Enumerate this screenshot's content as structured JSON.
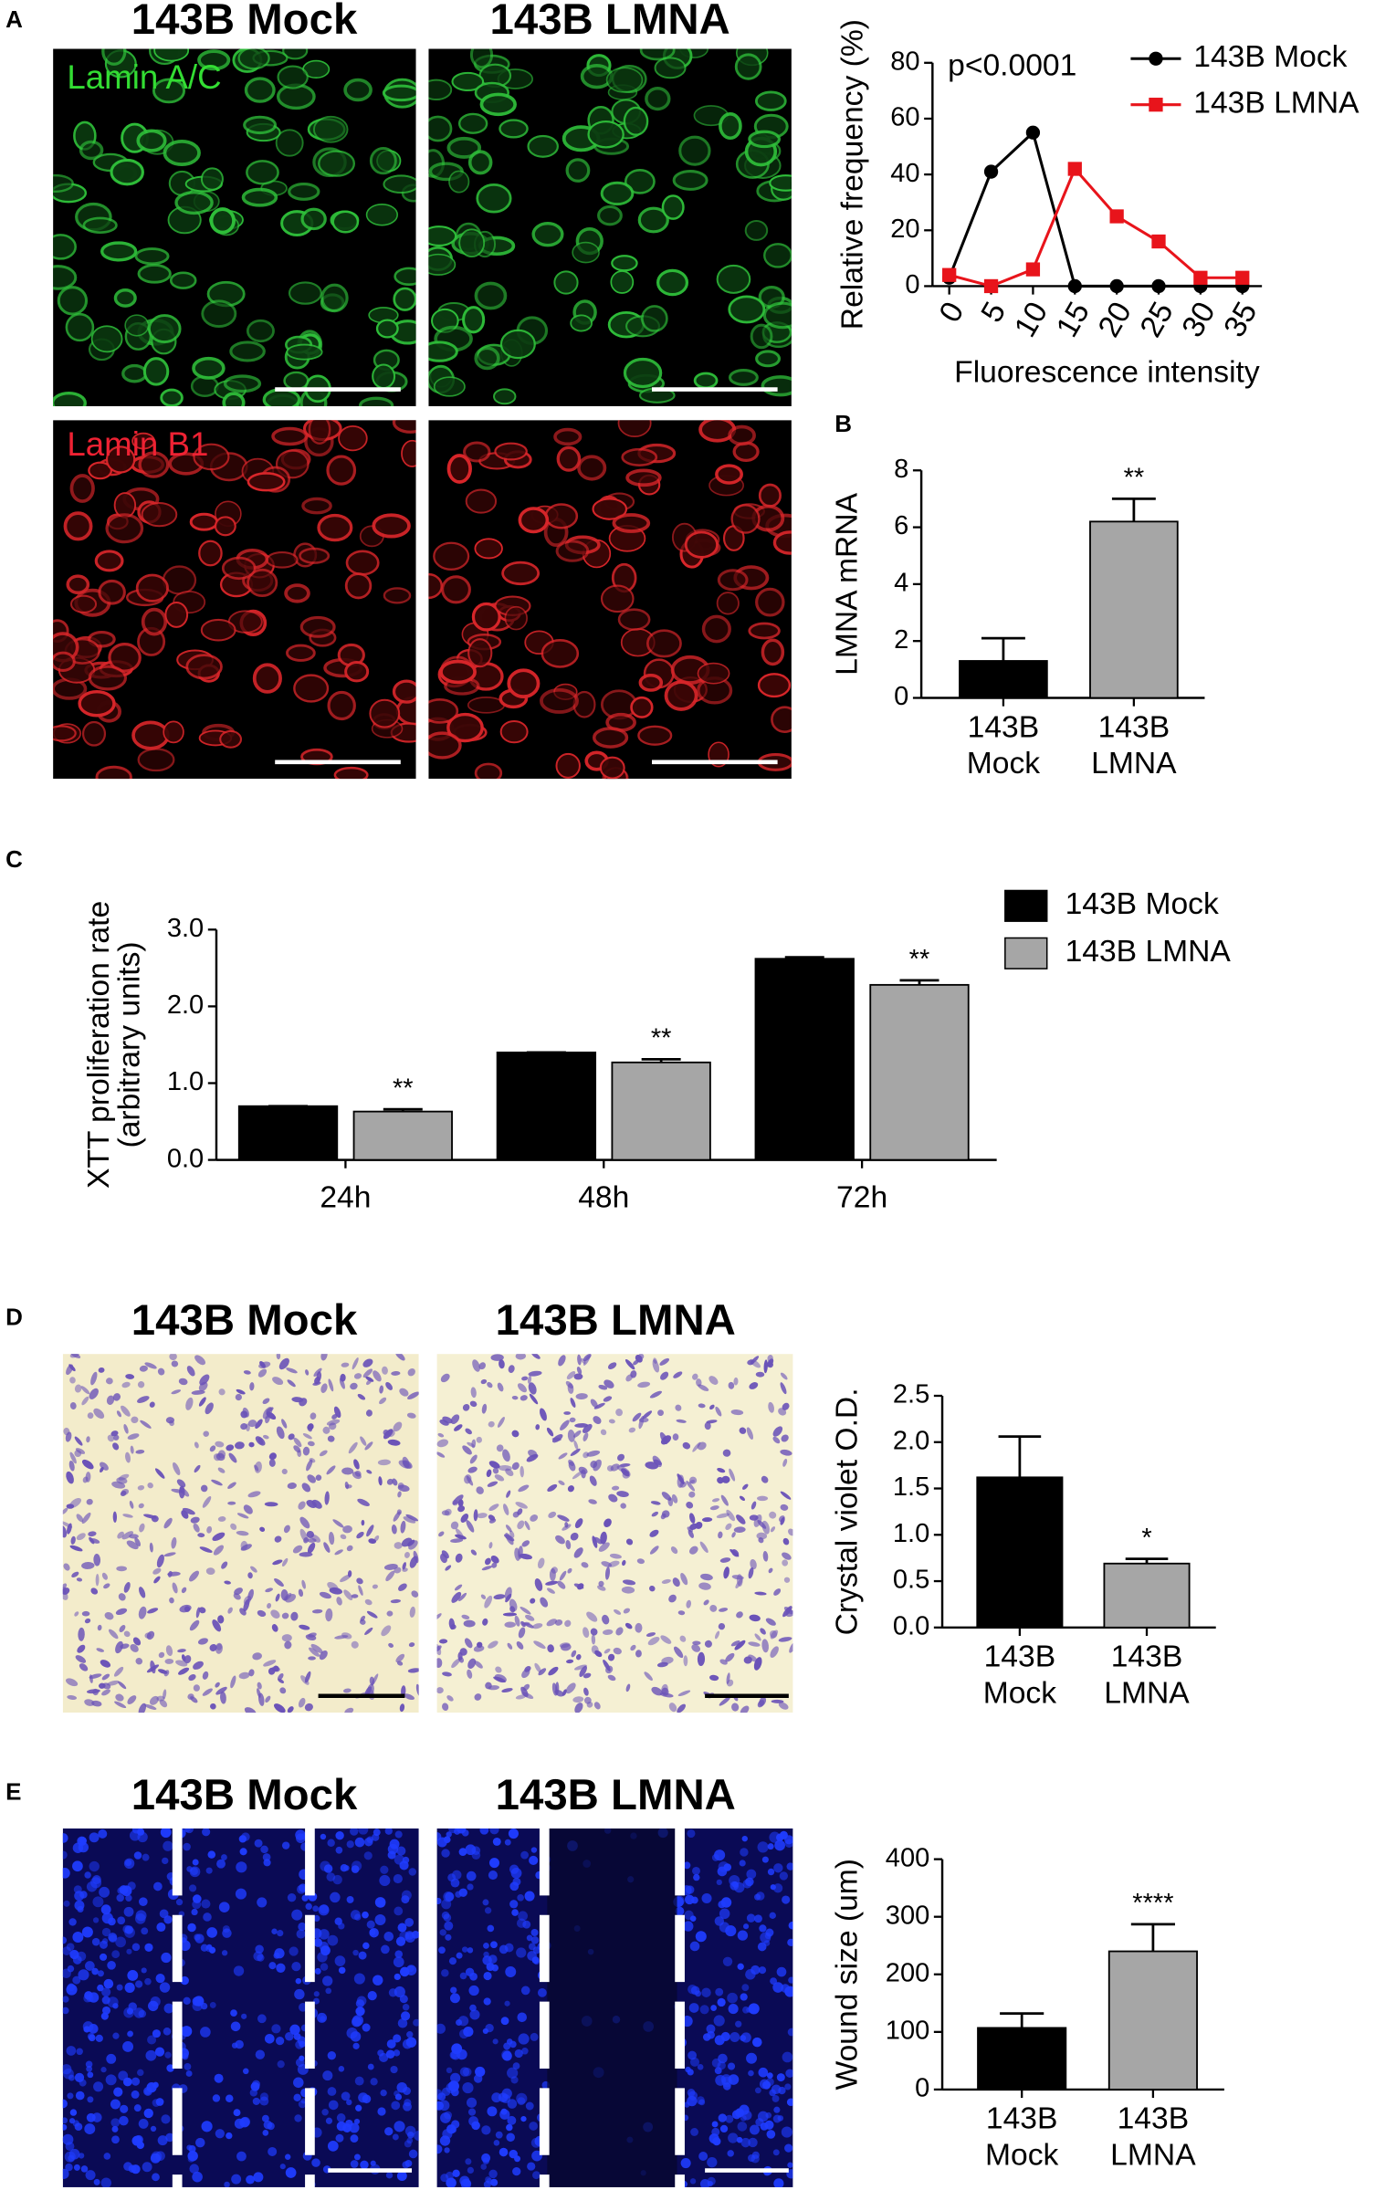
{
  "panels": {
    "A": {
      "label": "A",
      "columns": [
        "143B Mock",
        "143B LMNA"
      ],
      "stains": [
        "Lamin A/C",
        "Lamin B1"
      ]
    },
    "B": {
      "label": "B"
    },
    "C": {
      "label": "C"
    },
    "D": {
      "label": "D",
      "columns": [
        "143B Mock",
        "143B LMNA"
      ]
    },
    "E": {
      "label": "E",
      "columns": [
        "143B Mock",
        "143B LMNA"
      ]
    }
  },
  "chart_data": [
    {
      "type": "line",
      "xlabel": "Fluorescence intensity",
      "ylabel": "Relative frequency (%)",
      "annotation": "p<0.0001",
      "x": [
        0,
        5,
        10,
        15,
        20,
        25,
        30,
        35
      ],
      "xlim": [
        0,
        35
      ],
      "xticks": [
        0,
        5,
        10,
        15,
        20,
        25,
        30,
        35
      ],
      "ylim": [
        0,
        80
      ],
      "yticks": [
        0,
        20,
        40,
        60,
        80
      ],
      "series": [
        {
          "name": "143B Mock",
          "color": "#000000",
          "marker": "circle",
          "values": [
            3,
            41,
            55,
            0,
            0,
            0,
            0,
            0
          ]
        },
        {
          "name": "143B LMNA",
          "color": "#e8141b",
          "marker": "square",
          "values": [
            4,
            0,
            6,
            42,
            25,
            16,
            3,
            3
          ]
        }
      ]
    },
    {
      "type": "bar",
      "ylabel": "LMNA mRNA",
      "categories": [
        "143B Mock",
        "143B LMNA"
      ],
      "values": [
        1.3,
        6.2
      ],
      "errors": [
        0.8,
        0.8
      ],
      "colors": [
        "#000000",
        "#a6a6a6"
      ],
      "annotations": [
        null,
        "**"
      ],
      "ylim": [
        0,
        8
      ],
      "yticks": [
        0,
        2,
        4,
        6,
        8
      ]
    },
    {
      "type": "grouped_bar",
      "ylabel": [
        "XTT proliferation rate",
        "(arbitrary units)"
      ],
      "categories": [
        "24h",
        "48h",
        "72h"
      ],
      "series": [
        {
          "name": "143B Mock",
          "color": "#000000",
          "values": [
            0.7,
            1.4,
            2.62
          ],
          "errors": [
            0,
            0,
            0.02
          ],
          "annotations": [
            null,
            null,
            null
          ]
        },
        {
          "name": "143B LMNA",
          "color": "#a6a6a6",
          "values": [
            0.63,
            1.27,
            2.28
          ],
          "errors": [
            0.03,
            0.04,
            0.06
          ],
          "annotations": [
            "**",
            "**",
            "**"
          ]
        }
      ],
      "ylim": [
        0,
        3
      ],
      "yticks": [
        {
          "value": 0,
          "label": "0.0"
        },
        {
          "value": 1,
          "label": "1.0"
        },
        {
          "value": 2,
          "label": "2.0"
        },
        {
          "value": 3,
          "label": "3.0"
        }
      ]
    },
    {
      "type": "bar",
      "ylabel": "Crystal violet O.D.",
      "categories": [
        "143B Mock",
        "143B LMNA"
      ],
      "values": [
        1.62,
        0.69
      ],
      "errors": [
        0.44,
        0.05
      ],
      "colors": [
        "#000000",
        "#a6a6a6"
      ],
      "annotations": [
        null,
        "*"
      ],
      "ylim": [
        0,
        2.5
      ],
      "yticks": [
        {
          "value": 0,
          "label": "0.0"
        },
        {
          "value": 0.5,
          "label": "0.5"
        },
        {
          "value": 1,
          "label": "1.0"
        },
        {
          "value": 1.5,
          "label": "1.5"
        },
        {
          "value": 2,
          "label": "2.0"
        },
        {
          "value": 2.5,
          "label": "2.5"
        }
      ]
    },
    {
      "type": "bar",
      "ylabel": "Wound size (um)",
      "categories": [
        "143B Mock",
        "143B LMNA"
      ],
      "values": [
        107,
        240
      ],
      "errors": [
        25,
        47
      ],
      "colors": [
        "#000000",
        "#a6a6a6"
      ],
      "annotations": [
        null,
        "****"
      ],
      "ylim": [
        0,
        400
      ],
      "yticks": [
        0,
        100,
        200,
        300,
        400
      ]
    }
  ]
}
